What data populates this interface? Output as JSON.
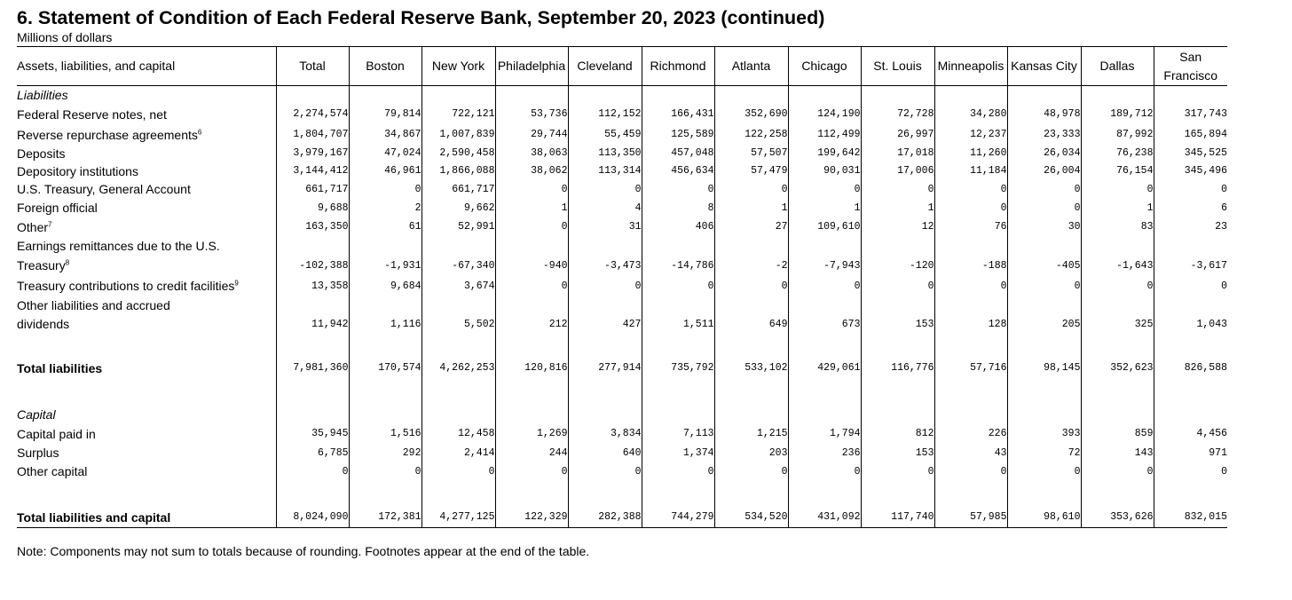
{
  "title": "6. Statement of Condition of Each Federal Reserve Bank, September 20, 2023 (continued)",
  "subtitle": "Millions of dollars",
  "columns": {
    "label": "Assets, liabilities, and capital",
    "total": "Total",
    "boston": "Boston",
    "new_york": "New York",
    "philadelphia": "Philadelphia",
    "cleveland": "Cleveland",
    "richmond": "Richmond",
    "atlanta": "Atlanta",
    "chicago": "Chicago",
    "st_louis": "St. Louis",
    "minneapolis": "Minneapolis",
    "kansas_city": "Kansas City",
    "dallas": "Dallas",
    "san_francisco": "San Francisco"
  },
  "sections": {
    "liabilities": "Liabilities",
    "capital": "Capital"
  },
  "rows": {
    "fr_notes": {
      "label": "Federal Reserve notes, net",
      "values": [
        "2,274,574",
        "79,814",
        "722,121",
        "53,736",
        "112,152",
        "166,431",
        "352,690",
        "124,190",
        "72,728",
        "34,280",
        "48,978",
        "189,712",
        "317,743"
      ]
    },
    "reverse_repo": {
      "label": "Reverse repurchase agreements",
      "footnote": "6",
      "values": [
        "1,804,707",
        "34,867",
        "1,007,839",
        "29,744",
        "55,459",
        "125,589",
        "122,258",
        "112,499",
        "26,997",
        "12,237",
        "23,333",
        "87,992",
        "165,894"
      ]
    },
    "deposits": {
      "label": "Deposits",
      "values": [
        "3,979,167",
        "47,024",
        "2,590,458",
        "38,063",
        "113,350",
        "457,048",
        "57,507",
        "199,642",
        "17,018",
        "11,260",
        "26,034",
        "76,238",
        "345,525"
      ]
    },
    "depository": {
      "label": "Depository institutions",
      "values": [
        "3,144,412",
        "46,961",
        "1,866,088",
        "38,062",
        "113,314",
        "456,634",
        "57,479",
        "90,031",
        "17,006",
        "11,184",
        "26,004",
        "76,154",
        "345,496"
      ]
    },
    "treasury_ga": {
      "label": "U.S. Treasury, General Account",
      "values": [
        "661,717",
        "0",
        "661,717",
        "0",
        "0",
        "0",
        "0",
        "0",
        "0",
        "0",
        "0",
        "0",
        "0"
      ]
    },
    "foreign": {
      "label": "Foreign official",
      "values": [
        "9,688",
        "2",
        "9,662",
        "1",
        "4",
        "8",
        "1",
        "1",
        "1",
        "0",
        "0",
        "1",
        "6"
      ]
    },
    "other_dep": {
      "label": "Other",
      "footnote": "7",
      "values": [
        "163,350",
        "61",
        "52,991",
        "0",
        "31",
        "406",
        "27",
        "109,610",
        "12",
        "76",
        "30",
        "83",
        "23"
      ]
    },
    "earnings": {
      "label_line1": "Earnings remittances due to the U.S.",
      "label_line2": "Treasury",
      "footnote": "8",
      "values": [
        "-102,388",
        "-1,931",
        "-67,340",
        "-940",
        "-3,473",
        "-14,786",
        "-2",
        "-7,943",
        "-120",
        "-188",
        "-405",
        "-1,643",
        "-3,617"
      ]
    },
    "treasury_contrib": {
      "label": "Treasury contributions to credit facilities",
      "footnote": "9",
      "values": [
        "13,358",
        "9,684",
        "3,674",
        "0",
        "0",
        "0",
        "0",
        "0",
        "0",
        "0",
        "0",
        "0",
        "0"
      ]
    },
    "other_liab": {
      "label_line1": "Other liabilities and accrued",
      "label_line2": "dividends",
      "values": [
        "11,942",
        "1,116",
        "5,502",
        "212",
        "427",
        "1,511",
        "649",
        "673",
        "153",
        "128",
        "205",
        "325",
        "1,043"
      ]
    },
    "total_liab": {
      "label": "Total liabilities",
      "values": [
        "7,981,360",
        "170,574",
        "4,262,253",
        "120,816",
        "277,914",
        "735,792",
        "533,102",
        "429,061",
        "116,776",
        "57,716",
        "98,145",
        "352,623",
        "826,588"
      ]
    },
    "cap_paid": {
      "label": "Capital paid in",
      "values": [
        "35,945",
        "1,516",
        "12,458",
        "1,269",
        "3,834",
        "7,113",
        "1,215",
        "1,794",
        "812",
        "226",
        "393",
        "859",
        "4,456"
      ]
    },
    "surplus": {
      "label": "Surplus",
      "values": [
        "6,785",
        "292",
        "2,414",
        "244",
        "640",
        "1,374",
        "203",
        "236",
        "153",
        "43",
        "72",
        "143",
        "971"
      ]
    },
    "other_cap": {
      "label": "Other capital",
      "values": [
        "0",
        "0",
        "0",
        "0",
        "0",
        "0",
        "0",
        "0",
        "0",
        "0",
        "0",
        "0",
        "0"
      ]
    },
    "total_lc": {
      "label": "Total liabilities and capital",
      "values": [
        "8,024,090",
        "172,381",
        "4,277,125",
        "122,329",
        "282,388",
        "744,279",
        "534,520",
        "431,092",
        "117,740",
        "57,985",
        "98,610",
        "353,626",
        "832,015"
      ]
    }
  },
  "note": "Note: Components may not sum to totals because of rounding. Footnotes appear at the end of the table."
}
